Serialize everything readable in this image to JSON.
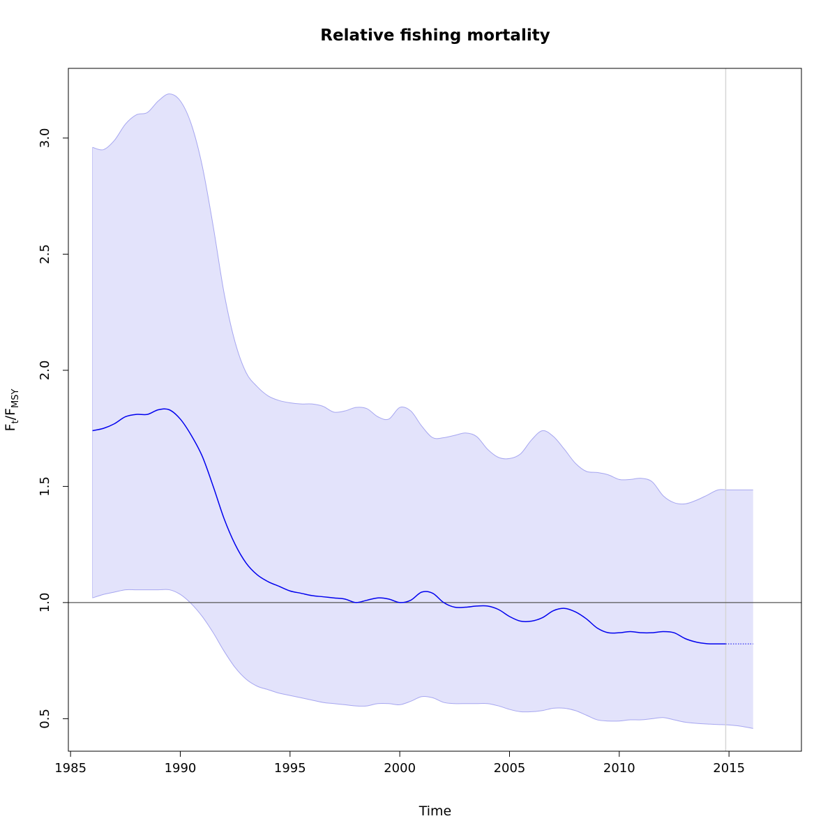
{
  "chart_data": {
    "type": "line",
    "title": "Relative fishing mortality",
    "xlabel": "Time",
    "ylabel": {
      "main": "F",
      "sub1": "t",
      "sep": "/F",
      "sub2": "MSY"
    },
    "xlim": [
      1984.9,
      2018.3
    ],
    "ylim": [
      0.36,
      3.3
    ],
    "x_ticks": [
      1985,
      1990,
      1995,
      2000,
      2005,
      2010,
      2015
    ],
    "x_tick_labels": [
      "1985",
      "1990",
      "1995",
      "2000",
      "2005",
      "2010",
      "2015"
    ],
    "y_ticks": [
      0.5,
      1.0,
      1.5,
      2.0,
      2.5,
      3.0
    ],
    "y_tick_labels": [
      "0.5",
      "1.0",
      "1.5",
      "2.0",
      "2.5",
      "3.0"
    ],
    "reference_line_y": 1.0,
    "vertical_line_x": 2014.85,
    "grid": false,
    "colors": {
      "line": "#0000ee",
      "band_fill": "#e3e3fb",
      "band_edge": "#a6a6f0",
      "reference": "#555555",
      "vline": "#d6d6d6"
    },
    "series": [
      {
        "role": "estimate",
        "x": [
          1986.0,
          1986.5,
          1987.0,
          1987.5,
          1988.0,
          1988.5,
          1989.0,
          1989.5,
          1990.0,
          1990.5,
          1991.0,
          1991.5,
          1992.0,
          1992.5,
          1993.0,
          1993.5,
          1994.0,
          1994.5,
          1995.0,
          1995.5,
          1996.0,
          1996.5,
          1997.0,
          1997.5,
          1998.0,
          1998.5,
          1999.0,
          1999.5,
          2000.0,
          2000.5,
          2001.0,
          2001.5,
          2002.0,
          2002.5,
          2003.0,
          2003.5,
          2004.0,
          2004.5,
          2005.0,
          2005.5,
          2006.0,
          2006.5,
          2007.0,
          2007.5,
          2008.0,
          2008.5,
          2009.0,
          2009.5,
          2010.0,
          2010.5,
          2011.0,
          2011.5,
          2012.0,
          2012.5,
          2013.0,
          2013.5,
          2014.0,
          2014.5,
          2014.85
        ],
        "y": [
          1.74,
          1.75,
          1.77,
          1.8,
          1.81,
          1.81,
          1.83,
          1.83,
          1.79,
          1.72,
          1.63,
          1.5,
          1.36,
          1.25,
          1.17,
          1.12,
          1.09,
          1.07,
          1.05,
          1.04,
          1.03,
          1.025,
          1.02,
          1.015,
          1.0,
          1.01,
          1.02,
          1.015,
          1.0,
          1.01,
          1.045,
          1.04,
          1.0,
          0.98,
          0.98,
          0.985,
          0.985,
          0.97,
          0.94,
          0.92,
          0.92,
          0.935,
          0.965,
          0.975,
          0.96,
          0.93,
          0.89,
          0.87,
          0.87,
          0.875,
          0.87,
          0.87,
          0.875,
          0.87,
          0.845,
          0.83,
          0.823,
          0.822,
          0.822
        ]
      },
      {
        "role": "forecast",
        "x": [
          2014.85,
          2015.5,
          2016.1
        ],
        "y": [
          0.822,
          0.822,
          0.822
        ]
      },
      {
        "role": "upper",
        "x": [
          1986.0,
          1986.5,
          1987.0,
          1987.5,
          1988.0,
          1988.5,
          1989.0,
          1989.5,
          1990.0,
          1990.5,
          1991.0,
          1991.5,
          1992.0,
          1992.5,
          1993.0,
          1993.5,
          1994.0,
          1994.5,
          1995.0,
          1995.5,
          1996.0,
          1996.5,
          1997.0,
          1997.5,
          1998.0,
          1998.5,
          1999.0,
          1999.5,
          2000.0,
          2000.5,
          2001.0,
          2001.5,
          2002.0,
          2002.5,
          2003.0,
          2003.5,
          2004.0,
          2004.5,
          2005.0,
          2005.5,
          2006.0,
          2006.5,
          2007.0,
          2007.5,
          2008.0,
          2008.5,
          2009.0,
          2009.5,
          2010.0,
          2010.5,
          2011.0,
          2011.5,
          2012.0,
          2012.5,
          2013.0,
          2013.5,
          2014.0,
          2014.5,
          2015.0,
          2015.5,
          2016.1
        ],
        "y": [
          2.96,
          2.95,
          2.99,
          3.06,
          3.1,
          3.11,
          3.16,
          3.19,
          3.16,
          3.06,
          2.88,
          2.62,
          2.33,
          2.12,
          1.99,
          1.93,
          1.89,
          1.87,
          1.86,
          1.855,
          1.855,
          1.845,
          1.82,
          1.825,
          1.84,
          1.835,
          1.8,
          1.79,
          1.84,
          1.825,
          1.76,
          1.71,
          1.71,
          1.72,
          1.73,
          1.715,
          1.66,
          1.625,
          1.62,
          1.64,
          1.7,
          1.74,
          1.715,
          1.66,
          1.6,
          1.565,
          1.56,
          1.55,
          1.53,
          1.53,
          1.535,
          1.52,
          1.46,
          1.43,
          1.425,
          1.44,
          1.462,
          1.485,
          1.485,
          1.485,
          1.485
        ]
      },
      {
        "role": "lower",
        "x": [
          1986.0,
          1986.5,
          1987.0,
          1987.5,
          1988.0,
          1988.5,
          1989.0,
          1989.5,
          1990.0,
          1990.5,
          1991.0,
          1991.5,
          1992.0,
          1992.5,
          1993.0,
          1993.5,
          1994.0,
          1994.5,
          1995.0,
          1995.5,
          1996.0,
          1996.5,
          1997.0,
          1997.5,
          1998.0,
          1998.5,
          1999.0,
          1999.5,
          2000.0,
          2000.5,
          2001.0,
          2001.5,
          2002.0,
          2002.5,
          2003.0,
          2003.5,
          2004.0,
          2004.5,
          2005.0,
          2005.5,
          2006.0,
          2006.5,
          2007.0,
          2007.5,
          2008.0,
          2008.5,
          2009.0,
          2009.5,
          2010.0,
          2010.5,
          2011.0,
          2011.5,
          2012.0,
          2012.5,
          2013.0,
          2013.5,
          2014.0,
          2014.5,
          2015.0,
          2015.5,
          2016.1
        ],
        "y": [
          1.02,
          1.035,
          1.045,
          1.055,
          1.055,
          1.055,
          1.055,
          1.055,
          1.035,
          0.995,
          0.94,
          0.87,
          0.79,
          0.72,
          0.67,
          0.64,
          0.625,
          0.61,
          0.6,
          0.59,
          0.58,
          0.57,
          0.565,
          0.56,
          0.555,
          0.555,
          0.565,
          0.565,
          0.56,
          0.575,
          0.595,
          0.59,
          0.57,
          0.565,
          0.565,
          0.565,
          0.565,
          0.555,
          0.54,
          0.53,
          0.53,
          0.535,
          0.545,
          0.545,
          0.535,
          0.515,
          0.495,
          0.49,
          0.49,
          0.495,
          0.495,
          0.5,
          0.505,
          0.495,
          0.485,
          0.48,
          0.477,
          0.475,
          0.473,
          0.468,
          0.458
        ]
      }
    ]
  }
}
